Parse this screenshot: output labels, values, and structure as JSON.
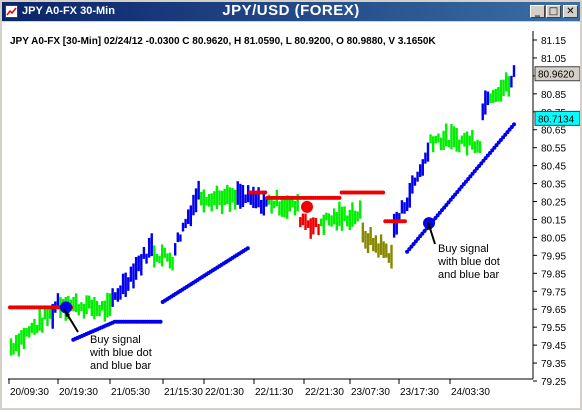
{
  "window": {
    "title_left": "JPY A0-FX 30-Min",
    "title_center": "JPY/USD (FOREX)",
    "controls": [
      "minimize",
      "maximize",
      "close"
    ]
  },
  "chart_data": {
    "type": "ohlc_bar",
    "info_line": "JPY A0-FX [30-Min] 02/24/12  -0.0300 C 80.9620, H 81.0590, L 80.9200, O 80.9880, V 3.1650K",
    "y_ticks": [
      "81.15",
      "81.05",
      "80.95",
      "80.85",
      "80.75",
      "80.65",
      "80.55",
      "80.45",
      "80.35",
      "80.25",
      "80.15",
      "80.05",
      "79.95",
      "79.85",
      "79.75",
      "79.65",
      "79.55",
      "79.45",
      "79.35",
      "79.25"
    ],
    "ylim": [
      79.25,
      81.15
    ],
    "x_ticks": [
      "20/09:30",
      "20/19:30",
      "21/05:30",
      "21/15:30",
      "22/01:30",
      "22/11:30",
      "22/21:30",
      "23/07:30",
      "23/17:30",
      "24/03:30"
    ],
    "price_boxes": [
      {
        "value": "80.9620",
        "color": "#d4d0c8"
      },
      {
        "value": "80.7134",
        "color": "#00ffff"
      }
    ],
    "bar_colors": {
      "green": "#00ee00",
      "blue": "#0000ee",
      "red": "#ee0000",
      "olive": "#888800"
    },
    "annotations": [
      "Buy signal\nwith blue dot\nand blue bar",
      "Buy signal\nwith blue dot\nand blue bar"
    ],
    "segments": [
      {
        "color": "green",
        "from": 79.44,
        "to": 79.62,
        "n": 16
      },
      {
        "color": "blue",
        "from": 79.63,
        "to": 79.7,
        "n": 3
      },
      {
        "color": "green",
        "from": 79.68,
        "to": 79.65,
        "n": 20
      },
      {
        "color": "blue",
        "from": 79.7,
        "to": 80.0,
        "n": 16
      },
      {
        "color": "green",
        "from": 79.96,
        "to": 79.93,
        "n": 8
      },
      {
        "color": "blue",
        "from": 80.0,
        "to": 80.3,
        "n": 10
      },
      {
        "color": "green",
        "from": 80.28,
        "to": 80.26,
        "n": 14
      },
      {
        "color": "blue",
        "from": 80.28,
        "to": 80.24,
        "n": 12
      },
      {
        "color": "green",
        "from": 80.25,
        "to": 80.22,
        "n": 12
      },
      {
        "color": "red",
        "from": 80.16,
        "to": 80.1,
        "n": 8
      },
      {
        "color": "green",
        "from": 80.14,
        "to": 80.18,
        "n": 16
      },
      {
        "color": "olive",
        "from": 80.06,
        "to": 79.95,
        "n": 12
      },
      {
        "color": "blue",
        "from": 80.1,
        "to": 80.52,
        "n": 14
      },
      {
        "color": "green",
        "from": 80.6,
        "to": 80.58,
        "n": 20
      },
      {
        "color": "blue",
        "from": 80.75,
        "to": 80.85,
        "n": 3
      },
      {
        "color": "green",
        "from": 80.85,
        "to": 80.9,
        "n": 8
      },
      {
        "color": "blue",
        "from": 80.92,
        "to": 80.96,
        "n": 2
      }
    ],
    "stop_dots": [
      {
        "color": "red",
        "from": 79.66,
        "to": 79.66,
        "n": 29
      },
      {
        "color": "blue",
        "from": 79.48,
        "to": 79.58,
        "n": 20
      },
      {
        "color": "blue",
        "from": 79.58,
        "to": 79.58,
        "n": 21
      },
      {
        "color": "blue",
        "from": 79.69,
        "to": 79.99,
        "n": 40
      },
      {
        "color": "red",
        "from": 80.3,
        "to": 80.3,
        "n": 8
      },
      {
        "color": "red",
        "from": 80.27,
        "to": 80.27,
        "n": 34
      },
      {
        "color": "red",
        "from": 80.3,
        "to": 80.3,
        "n": 20
      },
      {
        "color": "red",
        "from": 80.14,
        "to": 80.14,
        "n": 10
      },
      {
        "color": "blue",
        "from": 79.97,
        "to": 80.68,
        "n": 50
      }
    ],
    "signal_dots": [
      {
        "color": "blue",
        "value": 79.66
      },
      {
        "color": "red",
        "value": 80.22
      },
      {
        "color": "blue",
        "value": 80.13
      }
    ]
  }
}
